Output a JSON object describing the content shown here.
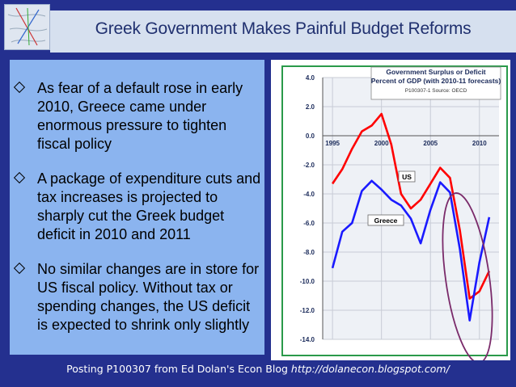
{
  "slide": {
    "title": "Greek Government Makes Painful Budget Reforms",
    "bullets": [
      "As fear of a default rose in early 2010, Greece came under enormous pressure to tighten fiscal policy",
      "A package of expenditure cuts and tax increases is projected to sharply cut the Greek budget deficit in 2010 and 2011",
      "No similar changes are in store for US fiscal policy. Without tax or spending changes, the US deficit is expected to shrink only slightly"
    ],
    "footer_text": "Posting P100307 from Ed Dolan's Econ Blog ",
    "footer_url": "http://dolanecon.blogspot.com/"
  },
  "colors": {
    "background": "#24308f",
    "title_band": "#d6e0ef",
    "panel": "#8bb4ef",
    "us_line": "#ff0000",
    "greece_line": "#1a1aff",
    "highlight_ellipse": "#7a2a6a"
  },
  "chart_data": {
    "type": "line",
    "title_line1": "Government Surplus or Deficit",
    "title_line2": "Percent of GDP (with 2010-11 forecasts)",
    "source": "P100307-1 Source: OECD",
    "xlabel": "",
    "ylabel": "",
    "xlim": [
      1994,
      2012
    ],
    "ylim": [
      -14,
      4
    ],
    "x_ticks": [
      "1995",
      "2000",
      "2005",
      "2010"
    ],
    "y_ticks": [
      "4.0",
      "2.0",
      "0.0",
      "-2.0",
      "-4.0",
      "-6.0",
      "-8.0",
      "-10.0",
      "-12.0",
      "-14.0"
    ],
    "grid": true,
    "series": [
      {
        "name": "US",
        "x": [
          1995,
          1996,
          1997,
          1998,
          1999,
          2000,
          2001,
          2002,
          2003,
          2004,
          2005,
          2006,
          2007,
          2008,
          2009,
          2010,
          2011
        ],
        "values": [
          -3.3,
          -2.3,
          -0.9,
          0.3,
          0.7,
          1.5,
          -0.6,
          -4.0,
          -5.0,
          -4.4,
          -3.3,
          -2.2,
          -2.9,
          -6.5,
          -11.2,
          -10.7,
          -9.3
        ]
      },
      {
        "name": "Greece",
        "x": [
          1995,
          1996,
          1997,
          1998,
          1999,
          2000,
          2001,
          2002,
          2003,
          2004,
          2005,
          2006,
          2007,
          2008,
          2009,
          2010,
          2011
        ],
        "values": [
          -9.1,
          -6.6,
          -6.0,
          -3.8,
          -3.1,
          -3.7,
          -4.4,
          -4.8,
          -5.7,
          -7.4,
          -5.1,
          -3.2,
          -3.9,
          -7.8,
          -12.7,
          -8.7,
          -5.6
        ]
      }
    ]
  }
}
